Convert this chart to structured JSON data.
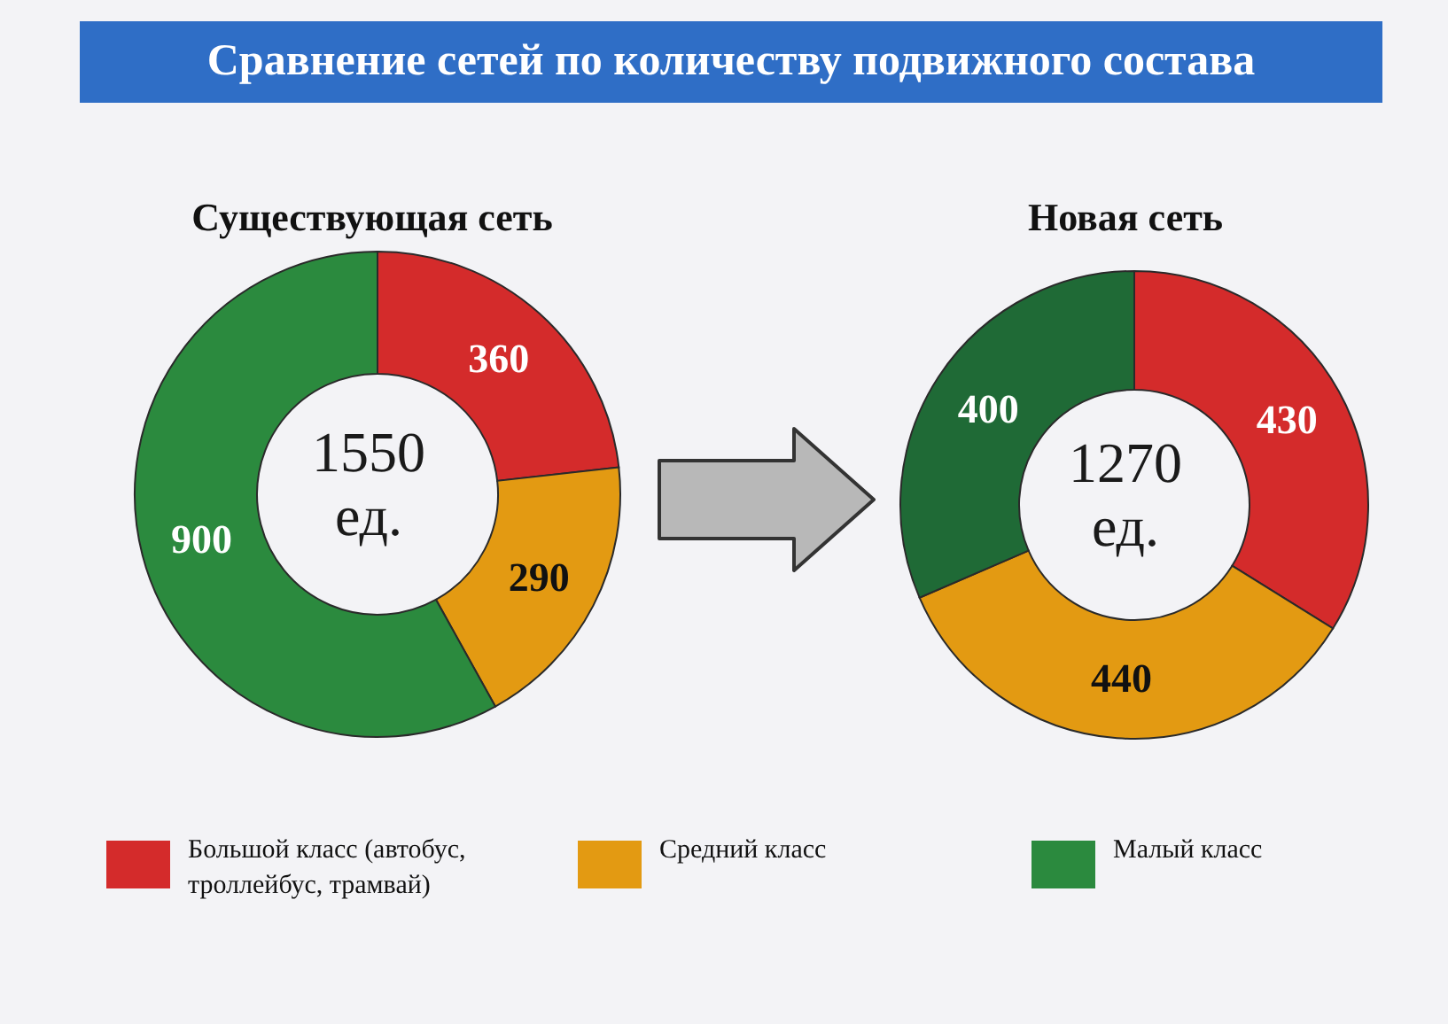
{
  "chart_data": [
    {
      "type": "donut",
      "title": "Сравнение сетей по количеству подвижного состава",
      "subtitle": "Существующая сеть",
      "categories": [
        "Большой класс (автобус, троллейбус, трамвай)",
        "Средний класс",
        "Малый класс"
      ],
      "values": [
        360,
        290,
        900
      ],
      "colors": [
        "#d42b2b",
        "#e39a12",
        "#2b8a3e"
      ],
      "data_labels": true,
      "legend": "bottom",
      "annotations": [
        "1550 ед."
      ]
    },
    {
      "type": "donut",
      "title": "Новая сеть",
      "categories": [
        null,
        null,
        null
      ],
      "values": [
        430,
        440,
        400
      ],
      "colors": [
        "#d42b2b",
        "#e39a12",
        "#1f6a36"
      ],
      "data_labels": true,
      "annotations": [
        "1270 ед."
      ]
    }
  ]
}
